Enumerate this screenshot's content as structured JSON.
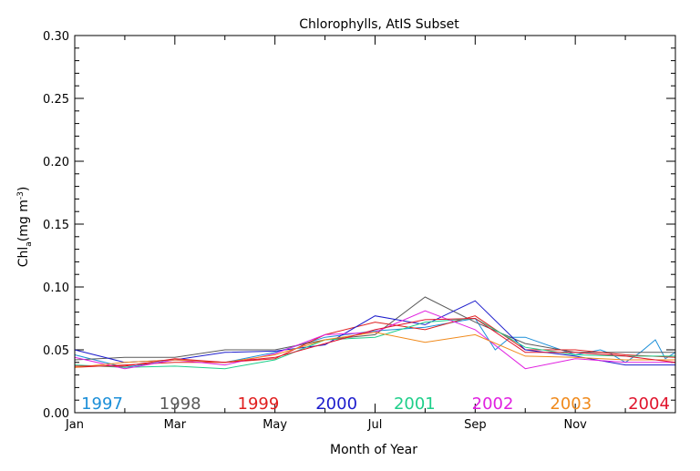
{
  "chart_data": {
    "type": "line",
    "title": "Chlorophylls, AtIS Subset",
    "xlabel": "Month of Year",
    "ylabel": "Chl",
    "ylabel_subscript": "a",
    "ylabel_units": "(mg m",
    "ylabel_units_exp": "-3",
    "ylabel_units_close": ")",
    "xlim": [
      1,
      13
    ],
    "ylim": [
      0,
      0.3
    ],
    "x_ticks": [
      {
        "x": 1,
        "label": "Jan"
      },
      {
        "x": 3,
        "label": "Mar"
      },
      {
        "x": 5,
        "label": "May"
      },
      {
        "x": 7,
        "label": "Jul"
      },
      {
        "x": 9,
        "label": "Sep"
      },
      {
        "x": 11,
        "label": "Nov"
      }
    ],
    "y_ticks": [
      {
        "y": 0.0,
        "label": "0.00"
      },
      {
        "y": 0.05,
        "label": "0.05"
      },
      {
        "y": 0.1,
        "label": "0.10"
      },
      {
        "y": 0.15,
        "label": "0.15"
      },
      {
        "y": 0.2,
        "label": "0.20"
      },
      {
        "y": 0.25,
        "label": "0.25"
      },
      {
        "y": 0.3,
        "label": "0.30"
      }
    ],
    "grid": false,
    "legend_position": "bottom, inside plot",
    "series": [
      {
        "name": "1997",
        "color": "#1c8fd8",
        "x": [
          1,
          2,
          3,
          4,
          5,
          6,
          7,
          8,
          9,
          9.4,
          9.7,
          10,
          11,
          11.5,
          11.7,
          12,
          12.3,
          12.6,
          12.8,
          13
        ],
        "y": [
          0.046,
          0.036,
          0.042,
          0.04,
          0.048,
          0.06,
          0.065,
          0.068,
          0.075,
          0.05,
          0.06,
          0.06,
          0.046,
          0.05,
          0.047,
          0.04,
          0.048,
          0.058,
          0.043,
          0.048
        ]
      },
      {
        "name": "1998",
        "color": "#5a5a5a",
        "x": [
          1,
          2,
          3,
          4,
          5,
          6,
          7,
          8,
          9,
          10,
          11,
          12,
          13
        ],
        "y": [
          0.042,
          0.044,
          0.044,
          0.05,
          0.05,
          0.058,
          0.062,
          0.092,
          0.072,
          0.055,
          0.048,
          0.048,
          0.048
        ]
      },
      {
        "name": "1999",
        "color": "#e01e1e",
        "x": [
          1,
          2,
          3,
          4,
          5,
          6,
          7,
          8,
          9,
          10,
          11,
          12,
          13
        ],
        "y": [
          0.036,
          0.038,
          0.04,
          0.04,
          0.043,
          0.062,
          0.072,
          0.066,
          0.077,
          0.05,
          0.05,
          0.046,
          0.044
        ]
      },
      {
        "name": "2000",
        "color": "#1c1ccc",
        "x": [
          1,
          2,
          3,
          4,
          5,
          6,
          7,
          8,
          9,
          10,
          11,
          12,
          13
        ],
        "y": [
          0.05,
          0.04,
          0.042,
          0.048,
          0.049,
          0.054,
          0.077,
          0.07,
          0.089,
          0.05,
          0.045,
          0.038,
          0.038
        ]
      },
      {
        "name": "2001",
        "color": "#1ecf8a",
        "x": [
          1,
          2,
          3,
          4,
          5,
          6,
          7,
          8,
          9,
          10,
          11,
          12,
          13
        ],
        "y": [
          0.038,
          0.036,
          0.037,
          0.035,
          0.042,
          0.058,
          0.06,
          0.072,
          0.075,
          0.052,
          0.046,
          0.045,
          0.045
        ]
      },
      {
        "name": "2002",
        "color": "#e020e0",
        "x": [
          1,
          2,
          3,
          4,
          5,
          6,
          7,
          8,
          9,
          10,
          11,
          12,
          13
        ],
        "y": [
          0.044,
          0.035,
          0.042,
          0.038,
          0.047,
          0.062,
          0.064,
          0.081,
          0.066,
          0.035,
          0.043,
          0.04,
          0.04
        ]
      },
      {
        "name": "2003",
        "color": "#f08a1c",
        "x": [
          1,
          2,
          3,
          4,
          5,
          6,
          7,
          8,
          9,
          10,
          11,
          12,
          13
        ],
        "y": [
          0.036,
          0.04,
          0.042,
          0.04,
          0.046,
          0.058,
          0.064,
          0.056,
          0.062,
          0.045,
          0.044,
          0.042,
          0.042
        ]
      },
      {
        "name": "2004",
        "color": "#e0142c",
        "x": [
          1,
          2,
          3,
          4,
          5,
          6,
          7,
          8,
          9,
          10,
          11,
          12,
          13
        ],
        "y": [
          0.037,
          0.037,
          0.043,
          0.04,
          0.044,
          0.055,
          0.066,
          0.074,
          0.075,
          0.048,
          0.048,
          0.045,
          0.04
        ]
      }
    ]
  }
}
